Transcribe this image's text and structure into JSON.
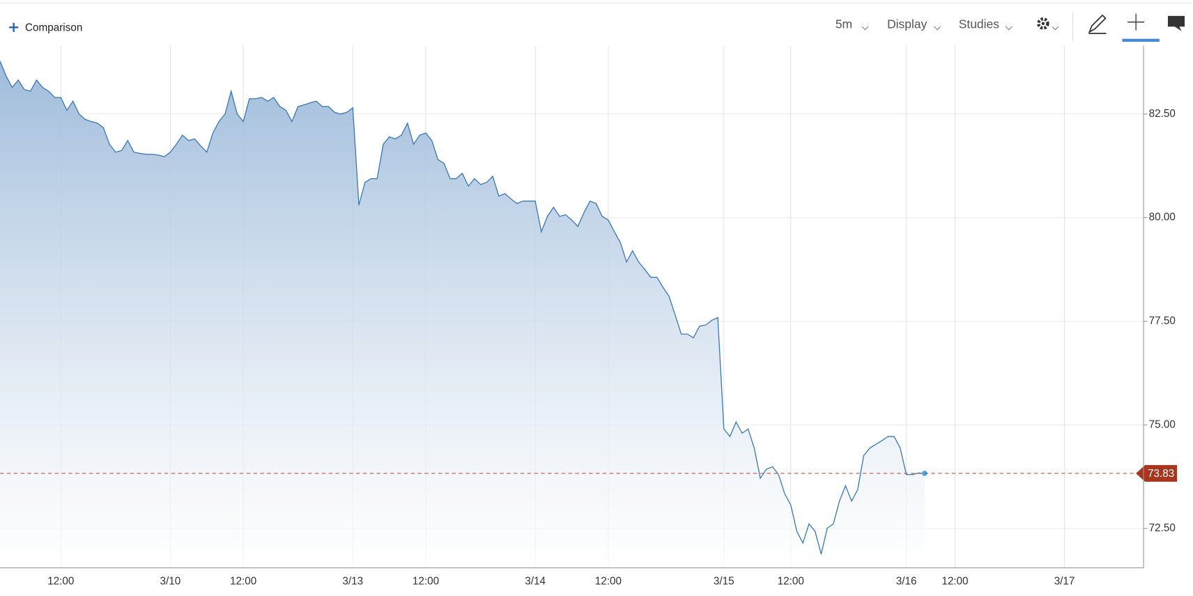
{
  "toolbar": {
    "comparison": "Comparison",
    "interval": "5m",
    "display": "Display",
    "studies": "Studies"
  },
  "chart_data": {
    "type": "area",
    "categories": [
      null,
      null,
      null,
      null,
      null,
      null,
      null,
      null,
      null,
      null,
      "12:00",
      null,
      null,
      null,
      null,
      null,
      null,
      null,
      null,
      null,
      null,
      null,
      null,
      null,
      null,
      null,
      null,
      null,
      "3/10",
      null,
      null,
      null,
      null,
      null,
      null,
      null,
      null,
      null,
      null,
      null,
      "12:00",
      null,
      null,
      null,
      null,
      null,
      null,
      null,
      null,
      null,
      null,
      null,
      null,
      null,
      null,
      null,
      null,
      null,
      "3/13",
      null,
      null,
      null,
      null,
      null,
      null,
      null,
      null,
      null,
      null,
      null,
      "12:00",
      null,
      null,
      null,
      null,
      null,
      null,
      null,
      null,
      null,
      null,
      null,
      null,
      null,
      null,
      null,
      null,
      null,
      "3/14",
      null,
      null,
      null,
      null,
      null,
      null,
      null,
      null,
      null,
      null,
      null,
      "12:00",
      null,
      null,
      null,
      null,
      null,
      null,
      null,
      null,
      null,
      null,
      null,
      null,
      null,
      null,
      null,
      null,
      null,
      null,
      "3/15",
      null,
      null,
      null,
      null,
      null,
      null,
      null,
      null,
      null,
      null,
      "12:00",
      null,
      null,
      null,
      null,
      null,
      null,
      null,
      null,
      null,
      null,
      null,
      null,
      null,
      null,
      null,
      null,
      null,
      null,
      "3/16",
      null,
      null,
      null,
      null,
      null,
      null,
      null,
      "12:00",
      null,
      null,
      null,
      null,
      null,
      null,
      null,
      null,
      null,
      null,
      null,
      null,
      null,
      null,
      null,
      null,
      null,
      "3/17",
      null,
      null,
      null,
      null,
      null,
      null,
      null,
      null,
      null,
      null,
      null,
      null,
      null
    ],
    "series": [
      {
        "color": "#3c78b0",
        "values": [
          83.78,
          83.42,
          83.14,
          83.32,
          83.09,
          83.05,
          83.32,
          83.14,
          83.05,
          82.9,
          82.9,
          82.59,
          82.81,
          82.5,
          82.37,
          82.32,
          82.28,
          82.17,
          81.77,
          81.58,
          81.62,
          81.86,
          81.58,
          81.55,
          81.53,
          81.53,
          81.51,
          81.47,
          81.58,
          81.77,
          81.99,
          81.86,
          81.9,
          81.73,
          81.58,
          82.04,
          82.32,
          82.5,
          83.05,
          82.5,
          82.32,
          82.87,
          82.87,
          82.9,
          82.81,
          82.9,
          82.68,
          82.59,
          82.32,
          82.68,
          82.72,
          82.77,
          82.81,
          82.68,
          82.68,
          82.54,
          82.5,
          82.54,
          82.65,
          80.3,
          80.85,
          80.94,
          80.94,
          81.77,
          81.95,
          81.9,
          81.99,
          82.28,
          81.77,
          81.99,
          82.04,
          81.86,
          81.4,
          81.31,
          80.94,
          80.94,
          81.07,
          80.76,
          80.94,
          80.8,
          80.85,
          81.0,
          80.52,
          80.58,
          80.45,
          80.34,
          80.4,
          80.4,
          80.4,
          79.66,
          80.03,
          80.25,
          80.03,
          80.07,
          79.94,
          79.79,
          80.12,
          80.4,
          80.34,
          80.03,
          79.94,
          79.66,
          79.39,
          78.93,
          79.2,
          78.93,
          78.75,
          78.56,
          78.56,
          78.32,
          78.1,
          77.65,
          77.19,
          77.19,
          77.1,
          77.38,
          77.41,
          77.52,
          77.59,
          74.9,
          74.72,
          75.07,
          74.8,
          74.9,
          74.44,
          73.71,
          73.93,
          73.99,
          73.8,
          73.34,
          73.07,
          72.43,
          72.15,
          72.61,
          72.43,
          71.88,
          72.51,
          72.61,
          73.16,
          73.53,
          73.16,
          73.44,
          74.26,
          74.44,
          74.53,
          74.62,
          74.72,
          74.72,
          74.44,
          73.8,
          73.8,
          73.84,
          73.83,
          null,
          null,
          null,
          null,
          null,
          null,
          null,
          null,
          null,
          null,
          null,
          null,
          null,
          null,
          null,
          null,
          null,
          null,
          null,
          null,
          null,
          null,
          null,
          null,
          null,
          null,
          null,
          null,
          null,
          null,
          null,
          null,
          null,
          null,
          null,
          null
        ]
      }
    ],
    "ylim": [
      71.55,
      84.15
    ],
    "yticks": [
      {
        "value": 72.5,
        "label": "72.50"
      },
      {
        "value": 75,
        "label": "75.00"
      },
      {
        "value": 77.5,
        "label": "77.50"
      },
      {
        "value": 80,
        "label": "80.00"
      },
      {
        "value": 82.5,
        "label": "82.50"
      }
    ],
    "last_price": {
      "value": 73.83,
      "label": "73.83"
    },
    "grid": true
  }
}
